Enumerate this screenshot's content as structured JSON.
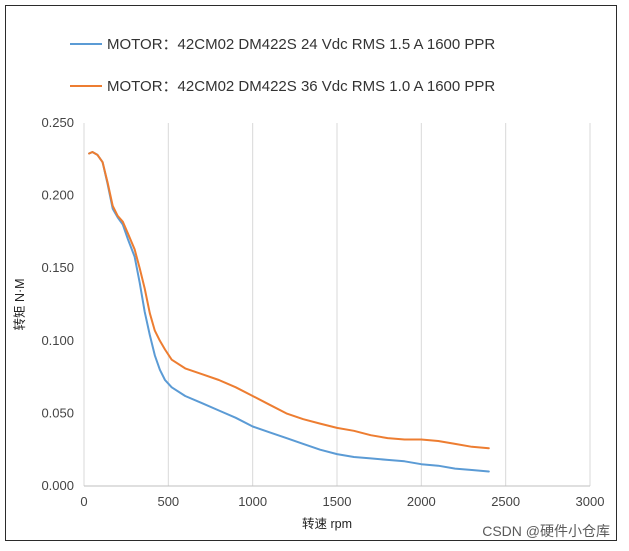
{
  "chart_data": {
    "type": "line",
    "title": "",
    "xlabel": "转速 rpm",
    "ylabel": "转矩 N·M",
    "xlim": [
      0,
      3000
    ],
    "ylim": [
      0,
      0.25
    ],
    "x_ticks": [
      "0",
      "500",
      "1000",
      "1500",
      "2000",
      "2500",
      "3000"
    ],
    "y_ticks": [
      "0.000",
      "0.050",
      "0.100",
      "0.150",
      "0.200",
      "0.250"
    ],
    "grid": "vertical",
    "legend_position": "top",
    "series": [
      {
        "name": "MOTOR：42CM02  DM422S 24 Vdc  RMS 1.5 A  1600 PPR",
        "color": "#5b9bd5",
        "points": [
          [
            30,
            0.229
          ],
          [
            50,
            0.23
          ],
          [
            80,
            0.228
          ],
          [
            110,
            0.223
          ],
          [
            140,
            0.208
          ],
          [
            170,
            0.191
          ],
          [
            200,
            0.185
          ],
          [
            230,
            0.18
          ],
          [
            260,
            0.17
          ],
          [
            300,
            0.158
          ],
          [
            330,
            0.14
          ],
          [
            360,
            0.12
          ],
          [
            390,
            0.104
          ],
          [
            420,
            0.09
          ],
          [
            450,
            0.08
          ],
          [
            480,
            0.073
          ],
          [
            520,
            0.068
          ],
          [
            600,
            0.062
          ],
          [
            700,
            0.057
          ],
          [
            800,
            0.052
          ],
          [
            900,
            0.047
          ],
          [
            1000,
            0.041
          ],
          [
            1100,
            0.037
          ],
          [
            1200,
            0.033
          ],
          [
            1300,
            0.029
          ],
          [
            1400,
            0.025
          ],
          [
            1500,
            0.022
          ],
          [
            1600,
            0.02
          ],
          [
            1700,
            0.019
          ],
          [
            1800,
            0.018
          ],
          [
            1900,
            0.017
          ],
          [
            2000,
            0.015
          ],
          [
            2100,
            0.014
          ],
          [
            2200,
            0.012
          ],
          [
            2300,
            0.011
          ],
          [
            2400,
            0.01
          ]
        ]
      },
      {
        "name": "MOTOR：42CM02  DM422S 36 Vdc  RMS 1.0 A  1600 PPR",
        "color": "#ed7d31",
        "points": [
          [
            30,
            0.229
          ],
          [
            50,
            0.23
          ],
          [
            80,
            0.228
          ],
          [
            110,
            0.223
          ],
          [
            140,
            0.209
          ],
          [
            170,
            0.193
          ],
          [
            200,
            0.186
          ],
          [
            230,
            0.182
          ],
          [
            260,
            0.174
          ],
          [
            300,
            0.163
          ],
          [
            330,
            0.15
          ],
          [
            360,
            0.136
          ],
          [
            390,
            0.119
          ],
          [
            420,
            0.107
          ],
          [
            450,
            0.1
          ],
          [
            480,
            0.094
          ],
          [
            520,
            0.087
          ],
          [
            600,
            0.081
          ],
          [
            700,
            0.077
          ],
          [
            800,
            0.073
          ],
          [
            900,
            0.068
          ],
          [
            1000,
            0.062
          ],
          [
            1100,
            0.056
          ],
          [
            1200,
            0.05
          ],
          [
            1300,
            0.046
          ],
          [
            1400,
            0.043
          ],
          [
            1500,
            0.04
          ],
          [
            1600,
            0.038
          ],
          [
            1700,
            0.035
          ],
          [
            1800,
            0.033
          ],
          [
            1900,
            0.032
          ],
          [
            2000,
            0.032
          ],
          [
            2100,
            0.031
          ],
          [
            2200,
            0.029
          ],
          [
            2300,
            0.027
          ],
          [
            2400,
            0.026
          ]
        ]
      }
    ]
  },
  "watermark": "CSDN @硬件小仓库"
}
